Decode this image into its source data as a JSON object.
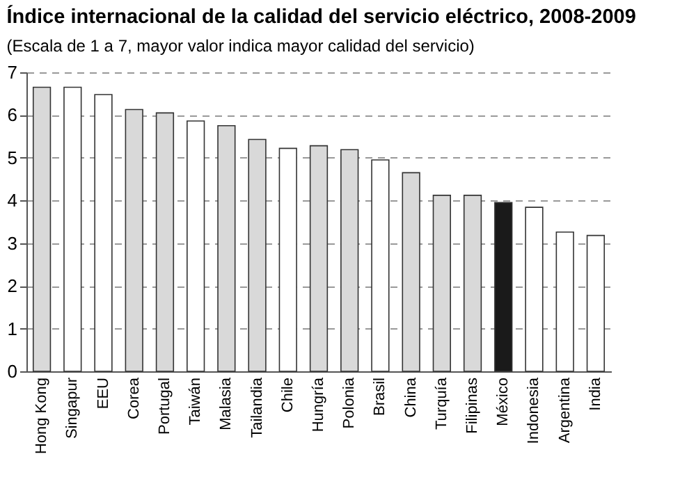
{
  "chart_data": {
    "type": "bar",
    "title": "Índice internacional de la calidad del servicio eléctrico, 2008-2009",
    "subtitle": "(Escala de 1 a 7, mayor valor indica mayor calidad del servicio)",
    "categories": [
      "Hong Kong",
      "Singapur",
      "EEU",
      "Corea",
      "Portugal",
      "Taiwán",
      "Malasia",
      "Tailandia",
      "Chile",
      "Hungría",
      "Polonia",
      "Brasil",
      "China",
      "Turquía",
      "Filipinas",
      "México",
      "Indonesia",
      "Argentina",
      "India"
    ],
    "values": [
      6.65,
      6.65,
      6.48,
      6.13,
      6.05,
      5.86,
      5.75,
      5.43,
      5.22,
      5.28,
      5.19,
      4.95,
      4.65,
      4.12,
      4.12,
      3.95,
      3.84,
      3.26,
      3.18
    ],
    "colors": [
      "#d9d9d9",
      "#ffffff",
      "#ffffff",
      "#d9d9d9",
      "#d9d9d9",
      "#ffffff",
      "#d9d9d9",
      "#d9d9d9",
      "#ffffff",
      "#d9d9d9",
      "#d9d9d9",
      "#ffffff",
      "#d9d9d9",
      "#d9d9d9",
      "#d9d9d9",
      "#1a1a1a",
      "#ffffff",
      "#ffffff",
      "#ffffff"
    ],
    "ylim": [
      0,
      7
    ],
    "yticks": [
      0,
      1,
      2,
      3,
      4,
      5,
      6,
      7
    ],
    "grid": "y"
  }
}
